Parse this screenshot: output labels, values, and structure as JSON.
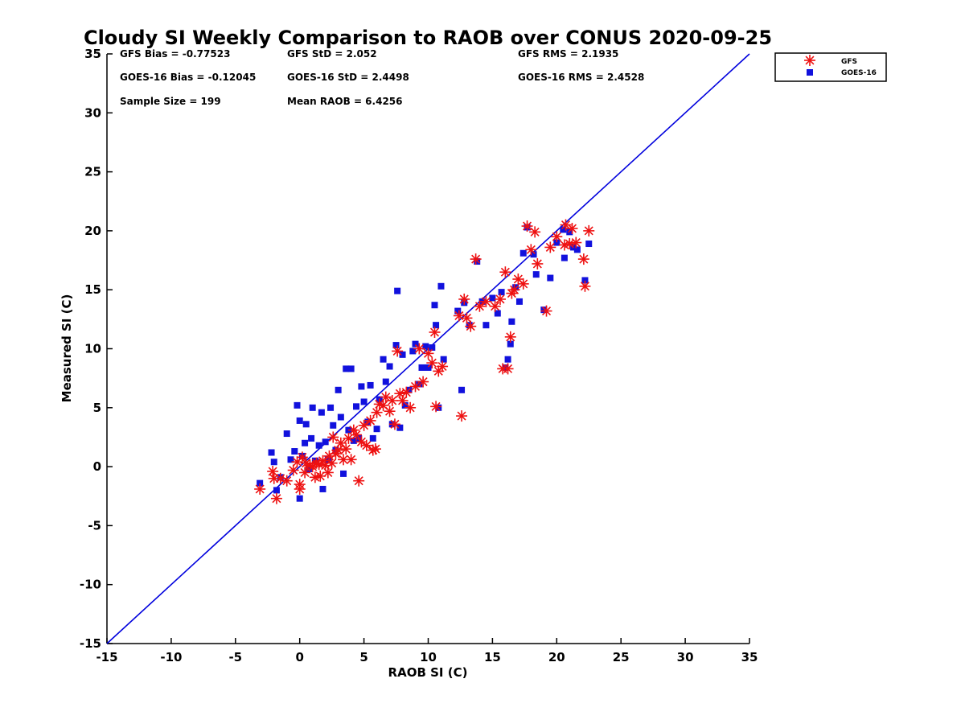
{
  "chart_data": {
    "type": "scatter",
    "title": "Cloudy SI Weekly Comparison to RAOB over CONUS 2020-09-25",
    "xlabel": "RAOB SI (C)",
    "ylabel": "Measured SI (C)",
    "xlim": [
      -15,
      35
    ],
    "ylim": [
      -15,
      35
    ],
    "xticks": [
      -15,
      -10,
      -5,
      0,
      5,
      10,
      15,
      20,
      25,
      30,
      35
    ],
    "yticks": [
      -15,
      -10,
      -5,
      0,
      5,
      10,
      15,
      20,
      25,
      30,
      35
    ],
    "grid": false,
    "legend_position": "top-right",
    "reference_line": {
      "x": [
        -15,
        35
      ],
      "y": [
        -15,
        35
      ],
      "color": "#0000dd"
    },
    "annotations": [
      "GFS Bias = -0.77523",
      "GFS StD = 2.052",
      "GFS RMS = 2.1935",
      "GOES-16 Bias = -0.12045",
      "GOES-16 StD = 2.4498",
      "GOES-16 RMS = 2.4528",
      "Sample Size = 199",
      "Mean RAOB = 6.4256"
    ],
    "series": [
      {
        "name": "GFS",
        "marker": "asterisk",
        "color": "#ee1111",
        "points": [
          [
            -3.1,
            -1.9
          ],
          [
            -2.1,
            -0.4
          ],
          [
            -2.0,
            -1.0
          ],
          [
            -1.8,
            -2.7
          ],
          [
            -1.5,
            -1.0
          ],
          [
            -1.0,
            -1.2
          ],
          [
            -0.5,
            -0.3
          ],
          [
            -0.2,
            0.4
          ],
          [
            0.0,
            -1.5
          ],
          [
            0.0,
            -1.9
          ],
          [
            0.2,
            0.8
          ],
          [
            0.4,
            -0.5
          ],
          [
            0.5,
            0.3
          ],
          [
            0.8,
            0.1
          ],
          [
            1.0,
            0.0
          ],
          [
            1.2,
            -0.9
          ],
          [
            1.3,
            0.3
          ],
          [
            1.5,
            0.2
          ],
          [
            1.6,
            -0.8
          ],
          [
            1.8,
            0.5
          ],
          [
            2.0,
            0.1
          ],
          [
            2.2,
            -0.5
          ],
          [
            2.3,
            0.9
          ],
          [
            2.5,
            0.3
          ],
          [
            2.6,
            2.5
          ],
          [
            2.8,
            1.1
          ],
          [
            3.0,
            1.4
          ],
          [
            3.2,
            2.0
          ],
          [
            3.4,
            0.6
          ],
          [
            3.6,
            1.5
          ],
          [
            3.8,
            2.4
          ],
          [
            4.0,
            0.6
          ],
          [
            4.2,
            3.1
          ],
          [
            4.4,
            2.7
          ],
          [
            4.6,
            -1.2
          ],
          [
            4.8,
            2.1
          ],
          [
            5.0,
            3.5
          ],
          [
            5.2,
            1.8
          ],
          [
            5.5,
            3.9
          ],
          [
            5.7,
            1.4
          ],
          [
            5.9,
            1.5
          ],
          [
            6.0,
            4.6
          ],
          [
            6.2,
            5.3
          ],
          [
            6.5,
            5.2
          ],
          [
            6.7,
            5.9
          ],
          [
            7.0,
            4.7
          ],
          [
            7.2,
            5.6
          ],
          [
            7.4,
            3.6
          ],
          [
            7.6,
            9.8
          ],
          [
            7.8,
            6.2
          ],
          [
            8.0,
            5.6
          ],
          [
            8.3,
            6.3
          ],
          [
            8.6,
            5.0
          ],
          [
            9.0,
            6.8
          ],
          [
            9.3,
            10.0
          ],
          [
            9.6,
            7.2
          ],
          [
            10.0,
            9.6
          ],
          [
            10.3,
            8.8
          ],
          [
            10.5,
            11.4
          ],
          [
            10.6,
            5.1
          ],
          [
            10.8,
            8.1
          ],
          [
            11.1,
            8.5
          ],
          [
            12.4,
            12.8
          ],
          [
            12.6,
            4.3
          ],
          [
            12.8,
            14.2
          ],
          [
            13.0,
            12.6
          ],
          [
            13.3,
            11.9
          ],
          [
            13.7,
            17.6
          ],
          [
            14.0,
            13.6
          ],
          [
            14.5,
            14.0
          ],
          [
            15.2,
            13.6
          ],
          [
            15.6,
            14.2
          ],
          [
            15.8,
            8.3
          ],
          [
            16.0,
            16.5
          ],
          [
            16.2,
            8.3
          ],
          [
            16.4,
            11.0
          ],
          [
            16.5,
            14.7
          ],
          [
            16.7,
            15.0
          ],
          [
            17.0,
            15.9
          ],
          [
            17.4,
            15.5
          ],
          [
            17.7,
            20.4
          ],
          [
            18.0,
            18.4
          ],
          [
            18.3,
            19.9
          ],
          [
            18.5,
            17.2
          ],
          [
            19.2,
            13.2
          ],
          [
            19.5,
            18.6
          ],
          [
            20.0,
            19.5
          ],
          [
            20.6,
            18.8
          ],
          [
            20.7,
            20.5
          ],
          [
            21.2,
            20.2
          ],
          [
            21.5,
            19.0
          ],
          [
            22.1,
            17.6
          ],
          [
            22.2,
            15.3
          ],
          [
            22.5,
            20.0
          ],
          [
            21.0,
            18.9
          ]
        ]
      },
      {
        "name": "GOES-16",
        "marker": "square",
        "color": "#1111dd",
        "points": [
          [
            -3.1,
            -1.4
          ],
          [
            -2.2,
            1.2
          ],
          [
            -2.0,
            0.4
          ],
          [
            -1.8,
            -2.0
          ],
          [
            -1.5,
            -0.9
          ],
          [
            -1.0,
            2.8
          ],
          [
            -0.7,
            0.6
          ],
          [
            -0.4,
            1.3
          ],
          [
            -0.2,
            5.2
          ],
          [
            0.0,
            3.9
          ],
          [
            0.0,
            -2.7
          ],
          [
            0.2,
            0.9
          ],
          [
            0.4,
            2.0
          ],
          [
            0.5,
            3.6
          ],
          [
            0.7,
            -0.2
          ],
          [
            0.9,
            2.4
          ],
          [
            1.0,
            5.0
          ],
          [
            1.2,
            0.5
          ],
          [
            1.5,
            1.8
          ],
          [
            1.7,
            4.6
          ],
          [
            1.8,
            -1.9
          ],
          [
            2.0,
            2.1
          ],
          [
            2.2,
            0.6
          ],
          [
            2.4,
            5.0
          ],
          [
            2.6,
            3.5
          ],
          [
            2.8,
            1.4
          ],
          [
            3.0,
            6.5
          ],
          [
            3.2,
            4.2
          ],
          [
            3.4,
            -0.6
          ],
          [
            3.6,
            8.3
          ],
          [
            3.8,
            3.1
          ],
          [
            4.0,
            8.3
          ],
          [
            4.2,
            2.2
          ],
          [
            4.4,
            5.1
          ],
          [
            4.6,
            2.4
          ],
          [
            4.8,
            6.8
          ],
          [
            5.0,
            5.5
          ],
          [
            5.3,
            3.8
          ],
          [
            5.5,
            6.9
          ],
          [
            5.7,
            2.4
          ],
          [
            6.0,
            3.2
          ],
          [
            6.2,
            5.7
          ],
          [
            6.5,
            9.1
          ],
          [
            6.7,
            7.2
          ],
          [
            7.0,
            8.5
          ],
          [
            7.2,
            3.6
          ],
          [
            7.5,
            10.3
          ],
          [
            7.6,
            14.9
          ],
          [
            7.8,
            3.3
          ],
          [
            8.0,
            9.5
          ],
          [
            8.2,
            5.2
          ],
          [
            8.5,
            6.5
          ],
          [
            8.8,
            9.8
          ],
          [
            9.0,
            10.4
          ],
          [
            9.3,
            7.0
          ],
          [
            9.5,
            8.4
          ],
          [
            9.8,
            10.2
          ],
          [
            10.0,
            8.4
          ],
          [
            10.3,
            10.1
          ],
          [
            10.5,
            13.7
          ],
          [
            10.6,
            12.0
          ],
          [
            10.8,
            5.0
          ],
          [
            11.0,
            15.3
          ],
          [
            11.2,
            9.1
          ],
          [
            12.3,
            13.2
          ],
          [
            12.6,
            6.5
          ],
          [
            12.8,
            13.9
          ],
          [
            13.2,
            12.0
          ],
          [
            13.8,
            17.4
          ],
          [
            14.2,
            14.0
          ],
          [
            14.5,
            12.0
          ],
          [
            15.0,
            14.3
          ],
          [
            15.4,
            13.0
          ],
          [
            15.7,
            14.8
          ],
          [
            16.0,
            8.4
          ],
          [
            16.2,
            9.1
          ],
          [
            16.4,
            10.4
          ],
          [
            16.5,
            12.3
          ],
          [
            16.8,
            15.2
          ],
          [
            17.1,
            14.0
          ],
          [
            17.4,
            18.1
          ],
          [
            17.7,
            20.3
          ],
          [
            18.2,
            18.0
          ],
          [
            18.4,
            16.3
          ],
          [
            19.0,
            13.3
          ],
          [
            19.5,
            16.0
          ],
          [
            20.0,
            19.0
          ],
          [
            20.5,
            20.1
          ],
          [
            20.6,
            17.7
          ],
          [
            21.0,
            19.9
          ],
          [
            21.3,
            18.6
          ],
          [
            21.6,
            18.4
          ],
          [
            22.2,
            15.8
          ],
          [
            22.5,
            18.9
          ]
        ]
      }
    ]
  }
}
